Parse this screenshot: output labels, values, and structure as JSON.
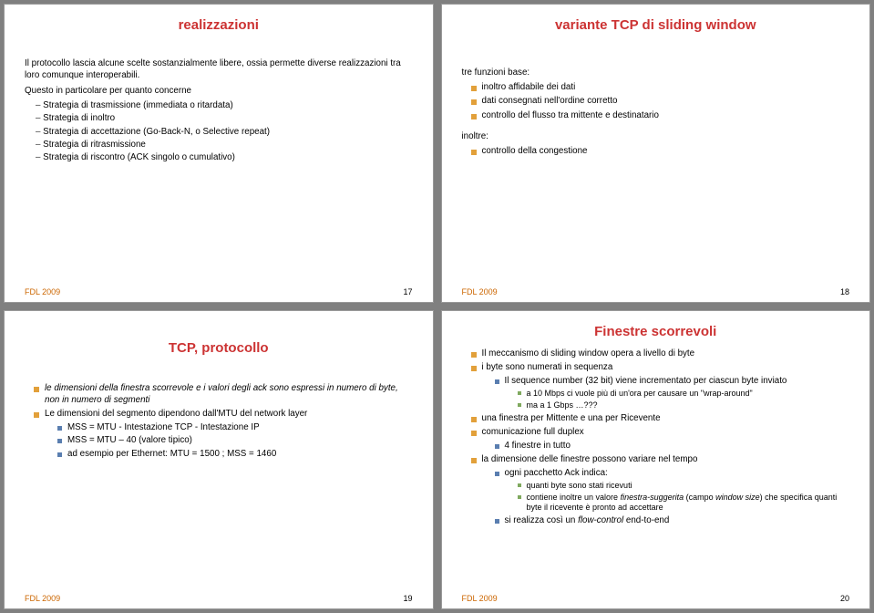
{
  "colors": {
    "title_red": "#cc3333",
    "bullet_orange": "#e2a03a",
    "bullet_blue": "#5a7eb0",
    "bullet_green": "#7fa95e",
    "footer_orange": "#cc6600"
  },
  "footers": {
    "fdl": "FDL 2009",
    "p17": "17",
    "p18": "18",
    "p19": "19",
    "p20": "20"
  },
  "slide1": {
    "title": "realizzazioni",
    "p1": "Il protocollo lascia alcune scelte sostanzialmente libere, ossia permette diverse realizzazioni tra loro comunque interoperabili.",
    "p2": "Questo in particolare per quanto concerne",
    "items": [
      "Strategia di trasmissione (immediata o ritardata)",
      "Strategia di inoltro",
      "Strategia di accettazione (Go-Back-N, o Selective repeat)",
      "Strategia di ritrasmissione",
      "Strategia di riscontro (ACK singolo o cumulativo)"
    ]
  },
  "slide2": {
    "title": "variante TCP di sliding window",
    "lead": "tre funzioni base:",
    "b": [
      "inoltro affidabile dei dati",
      "dati consegnati nell'ordine corretto",
      "controllo del flusso tra mittente e destinatario"
    ],
    "lead2": "inoltre:",
    "b2": [
      "controllo della congestione"
    ]
  },
  "slide3": {
    "title": "TCP, protocollo",
    "b0": "le dimensioni della finestra scorrevole e i valori degli ack sono espressi in numero di byte, non in numero di segmenti",
    "b1": "Le dimensioni del segmento dipendono dall'MTU del network layer",
    "sub": [
      "MSS = MTU - Intestazione TCP - Intestazione IP",
      "MSS = MTU – 40 (valore tipico)",
      "ad esempio per Ethernet: MTU = 1500 ; MSS = 1460"
    ]
  },
  "slide4": {
    "title": "Finestre scorrevoli",
    "b": [
      "Il meccanismo di sliding window opera a livello di byte",
      "i byte sono numerati in sequenza",
      "una finestra per Mittente e una per Ricevente",
      "comunicazione full duplex",
      "la dimensione delle finestre possono variare nel tempo"
    ],
    "seq_sub": "Il sequence number (32 bit) viene incrementato per ciascun byte inviato",
    "seq_sub2a": "a 10 Mbps ci vuole più di un'ora per causare un \"wrap-around\"",
    "seq_sub2b": "ma a 1 Gbps …???",
    "fd_sub": "4 finestre in tutto",
    "dim_sub": "ogni pacchetto Ack indica:",
    "dim_sub2": [
      "quanti byte sono stati ricevuti",
      "contiene inoltre un valore finestra-suggerita (campo window size) che specifica quanti byte il ricevente è pronto ad accettare"
    ],
    "last_sub": "si realizza così un flow-control end-to-end"
  }
}
